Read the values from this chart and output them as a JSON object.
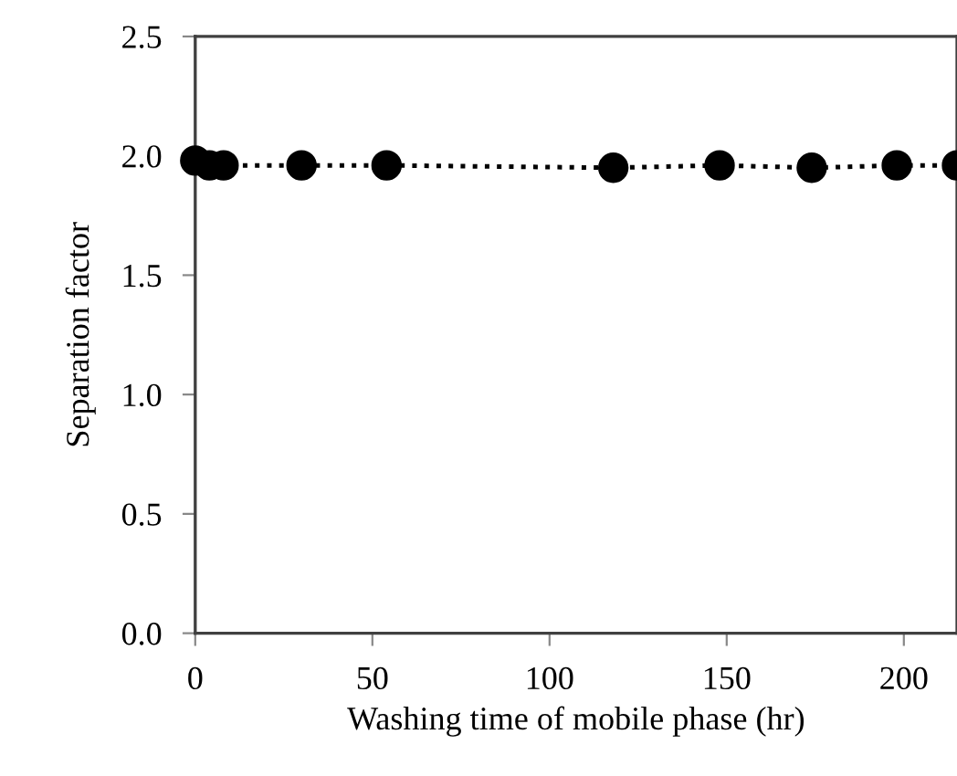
{
  "chart_data": {
    "type": "line",
    "xlabel": "Washing time of mobile phase (hr)",
    "ylabel": "Separation factor",
    "x": [
      0,
      4,
      8,
      30,
      54,
      118,
      148,
      174,
      198,
      215
    ],
    "series": [
      {
        "color": "#000000",
        "values": [
          1.98,
          1.96,
          1.96,
          1.96,
          1.96,
          1.95,
          1.96,
          1.95,
          1.96,
          1.96
        ]
      }
    ],
    "xlim": [
      0,
      215
    ],
    "ylim": [
      0,
      2.5
    ],
    "xticks": [
      0,
      50,
      100,
      150,
      200
    ],
    "yticks": [
      {
        "value": 0,
        "label": "0.0"
      },
      {
        "value": 0.5,
        "label": "0.5"
      },
      {
        "value": 1.0,
        "label": "1.0"
      },
      {
        "value": 1.5,
        "label": "1.5"
      },
      {
        "value": 2.0,
        "label": "2.0"
      },
      {
        "value": 2.5,
        "label": "2.5"
      }
    ],
    "grid": false,
    "marker": "circle",
    "line_style": "dotted"
  }
}
